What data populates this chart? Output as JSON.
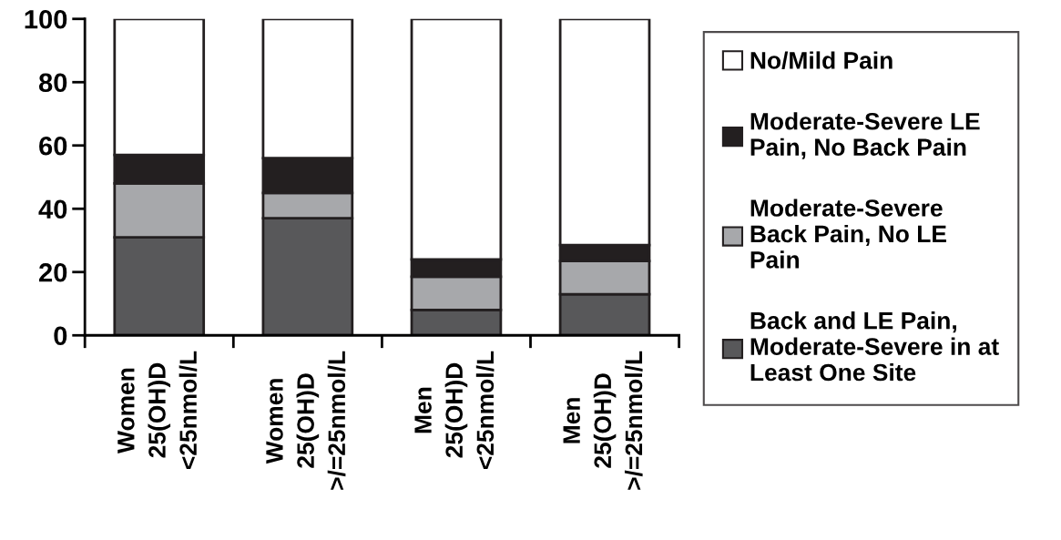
{
  "chart_data": {
    "type": "bar",
    "stacked": true,
    "categories": [
      "Women\n25(OH)D\n<25nmol/L",
      "Women\n25(OH)D\n>/=25nmol/L",
      "Men\n25(OH)D\n<25nmol/L",
      "Men\n25(OH)D\n>/=25nmol/L"
    ],
    "series": [
      {
        "name": "Back and LE Pain,\nModerate-Severe in at\nLeast One Site",
        "color": "#58585a",
        "values": [
          31,
          37,
          8,
          13
        ]
      },
      {
        "name": "Moderate-Severe\nBack Pain, No LE\nPain",
        "color": "#a7a8ab",
        "values": [
          17,
          8,
          10.5,
          10.5
        ]
      },
      {
        "name": "Moderate-Severe LE\nPain, No Back Pain",
        "color": "#231f20",
        "values": [
          9,
          11,
          5.5,
          5
        ]
      },
      {
        "name": "No/Mild Pain",
        "color": "#ffffff",
        "values": [
          43,
          44,
          76,
          71.5
        ]
      }
    ],
    "ylim": [
      0,
      100
    ],
    "yticks": [
      0,
      20,
      40,
      60,
      80,
      100
    ],
    "grid": false,
    "legend": "right"
  }
}
